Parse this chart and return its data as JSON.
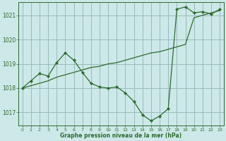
{
  "title": "Graphe pression niveau de la mer (hPa)",
  "background_color": "#cde8e8",
  "plot_bg_color": "#cde8e8",
  "grid_color": "#99bbbb",
  "line_color": "#2d6b2d",
  "marker_color": "#2d6b2d",
  "xlim": [
    -0.5,
    23.5
  ],
  "ylim": [
    1016.45,
    1021.55
  ],
  "yticks": [
    1017,
    1018,
    1019,
    1020,
    1021
  ],
  "xticks": [
    0,
    1,
    2,
    3,
    4,
    5,
    6,
    7,
    8,
    9,
    10,
    11,
    12,
    13,
    14,
    15,
    16,
    17,
    18,
    19,
    20,
    21,
    22,
    23
  ],
  "series1_x": [
    0,
    1,
    2,
    3,
    4,
    5,
    6,
    7,
    8,
    9,
    10,
    11,
    12,
    13,
    14,
    15,
    16,
    17,
    18,
    19,
    20,
    21,
    22,
    23
  ],
  "series1_y": [
    1018.0,
    1018.3,
    1018.6,
    1018.5,
    1019.05,
    1019.45,
    1019.15,
    1018.65,
    1018.2,
    1018.05,
    1018.0,
    1018.05,
    1017.8,
    1017.45,
    1016.9,
    1016.65,
    1016.85,
    1017.15,
    1021.25,
    1021.35,
    1021.1,
    1021.15,
    1021.05,
    1021.25
  ],
  "series2_x": [
    0,
    1,
    2,
    3,
    4,
    5,
    6,
    7,
    8,
    9,
    10,
    11,
    12,
    13,
    14,
    15,
    16,
    17,
    18,
    19,
    20,
    21,
    22,
    23
  ],
  "series2_y": [
    1018.0,
    1018.1,
    1018.2,
    1018.3,
    1018.45,
    1018.55,
    1018.65,
    1018.75,
    1018.85,
    1018.9,
    1019.0,
    1019.05,
    1019.15,
    1019.25,
    1019.35,
    1019.45,
    1019.5,
    1019.6,
    1019.7,
    1019.8,
    1020.9,
    1021.0,
    1021.1,
    1021.2
  ]
}
